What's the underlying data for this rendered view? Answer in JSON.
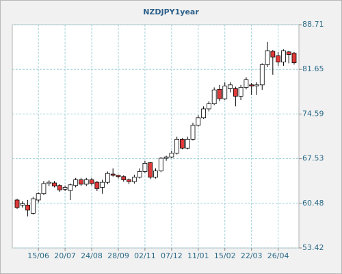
{
  "chart_data": {
    "type": "candlestick",
    "title": "NZDJPY1year",
    "categories": [
      null,
      null,
      null,
      null,
      "15/06",
      null,
      null,
      null,
      null,
      "20/07",
      null,
      null,
      null,
      null,
      "24/08",
      null,
      null,
      null,
      null,
      "28/09",
      null,
      null,
      null,
      null,
      "02/11",
      null,
      null,
      null,
      null,
      "07/12",
      null,
      null,
      null,
      null,
      "11/01",
      null,
      null,
      null,
      null,
      "15/02",
      null,
      null,
      null,
      null,
      "22/03",
      null,
      null,
      null,
      null,
      "26/04",
      null,
      null,
      null
    ],
    "series": [
      {
        "open": [
          61.0,
          60.2,
          60.2,
          58.9,
          61.0,
          62.0,
          63.6,
          63.7,
          63.3,
          62.7,
          62.5,
          63.3,
          64.2,
          63.5,
          64.2,
          63.8,
          63.0,
          63.8,
          65.1,
          64.9,
          64.7,
          64.2,
          63.9,
          64.6,
          65.5,
          66.9,
          64.6,
          65.6,
          67.6,
          67.8,
          68.4,
          70.6,
          69.2,
          70.6,
          72.8,
          74.0,
          75.4,
          76.2,
          78.5,
          77.0,
          78.6,
          78.6,
          77.4,
          78.8,
          79.2,
          79.0,
          79.2,
          82.4,
          84.5,
          83.8,
          82.8,
          84.4,
          84.2
        ],
        "high": [
          61.2,
          60.8,
          61.0,
          61.5,
          62.2,
          64.0,
          64.1,
          64.0,
          63.5,
          63.3,
          63.6,
          64.5,
          64.5,
          64.5,
          64.5,
          64.0,
          64.2,
          65.5,
          66.0,
          65.0,
          64.9,
          64.4,
          65.0,
          66.0,
          67.2,
          67.0,
          66.0,
          67.8,
          68.0,
          68.8,
          71.0,
          70.8,
          71.0,
          73.2,
          74.4,
          75.8,
          76.6,
          78.8,
          79.2,
          79.6,
          79.6,
          78.9,
          79.2,
          80.4,
          79.5,
          79.6,
          82.6,
          86.0,
          84.7,
          84.4,
          84.8,
          84.6,
          84.4
        ],
        "low": [
          59.6,
          59.8,
          58.4,
          58.7,
          60.6,
          61.8,
          63.2,
          63.0,
          62.3,
          62.4,
          61.0,
          63.0,
          63.2,
          63.2,
          63.3,
          62.4,
          62.0,
          63.5,
          64.7,
          64.4,
          63.9,
          63.5,
          63.6,
          64.4,
          65.3,
          64.3,
          64.4,
          65.4,
          67.2,
          67.6,
          68.2,
          69.0,
          69.0,
          70.4,
          72.6,
          73.8,
          75.0,
          76.0,
          76.6,
          76.8,
          78.0,
          75.8,
          76.8,
          78.5,
          77.6,
          77.6,
          78.4,
          82.0,
          80.8,
          82.2,
          82.2,
          82.6,
          82.4
        ],
        "close": [
          59.8,
          60.4,
          59.4,
          61.2,
          62.0,
          63.6,
          63.8,
          63.2,
          62.6,
          63.0,
          63.4,
          64.2,
          63.5,
          64.2,
          63.6,
          62.8,
          63.8,
          65.2,
          64.9,
          64.7,
          64.2,
          63.9,
          64.6,
          65.5,
          66.8,
          64.6,
          65.6,
          67.6,
          67.8,
          68.4,
          70.6,
          69.2,
          70.6,
          72.8,
          74.0,
          75.4,
          76.2,
          78.4,
          77.0,
          79.0,
          79.2,
          77.4,
          78.8,
          80.0,
          79.0,
          79.2,
          82.4,
          84.6,
          83.6,
          82.8,
          84.6,
          84.0,
          82.7
        ],
        "up_color": "#ffffff",
        "down_color": "#e03a3a"
      }
    ],
    "ylim": [
      53.42,
      88.71
    ],
    "yticks": [
      53.42,
      60.48,
      67.53,
      74.59,
      81.65,
      88.71
    ],
    "grid": true
  }
}
